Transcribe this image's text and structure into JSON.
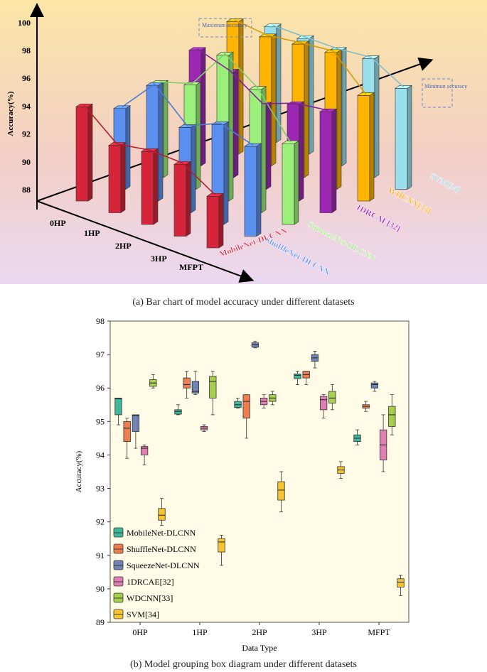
{
  "chart_data": [
    {
      "type": "bar",
      "title": "",
      "caption": "(a) Bar chart of model accuracy under different datasets",
      "ylabel": "Accuracy(%)",
      "ylim": [
        87,
        101
      ],
      "yticks": [
        88,
        90,
        92,
        94,
        96,
        98,
        100
      ],
      "categories": [
        "0HP",
        "1HP",
        "2HP",
        "3HP",
        "MFPT"
      ],
      "annotations": [
        "Maximum accuracy",
        "Minimun accuracy"
      ],
      "series": [
        {
          "name": "MobileNet-DLCNN",
          "color": "#d6243a",
          "values": [
            95.4,
            93.0,
            93.5,
            93.4,
            91.6
          ]
        },
        {
          "name": "ShuffleNet-DLCNN",
          "color": "#5b8ff0",
          "values": [
            94.2,
            97.3,
            94.6,
            95.9,
            95.0
          ]
        },
        {
          "name": "SqueezeNet-DLCNN",
          "color": "#9af07a",
          "values": [
            95.4,
            96.3,
            100.0,
            98.0,
            94.2
          ]
        },
        {
          "name": "1DRCAE[32]",
          "color": "#9b27b2",
          "values": [
            97.3,
            96.4,
            94.5,
            95.6,
            96.0
          ]
        },
        {
          "name": "WDCNN[33]",
          "color": "#ffb400",
          "values": [
            98.8,
            98.5,
            98.9,
            99.2,
            96.4
          ]
        },
        {
          "name": "SVM[34]",
          "color": "#99e0ec",
          "values": [
            97.3,
            97.3,
            97.3,
            97.6,
            96.0
          ]
        }
      ]
    },
    {
      "type": "box",
      "title": "",
      "caption": "(b) Model grouping box diagram under different datasets",
      "xlabel": "Data Type",
      "ylabel": "Accuracy(%)",
      "ylim": [
        89,
        98
      ],
      "yticks": [
        89,
        90,
        91,
        92,
        93,
        94,
        95,
        96,
        97,
        98
      ],
      "categories": [
        "0HP",
        "1HP",
        "2HP",
        "3HP",
        "MFPT"
      ],
      "legend_position": "bottom-left",
      "series": [
        {
          "name": "MobileNet-DLCNN",
          "color": "#3fb79b",
          "boxes": [
            {
              "min": 94.9,
              "q1": 95.2,
              "median": 95.68,
              "q3": 95.7,
              "max": 95.7
            },
            {
              "min": 95.2,
              "q1": 95.22,
              "median": 95.3,
              "q3": 95.35,
              "max": 95.5
            },
            {
              "min": 95.4,
              "q1": 95.42,
              "median": 95.5,
              "q3": 95.6,
              "max": 95.7
            },
            {
              "min": 96.1,
              "q1": 96.28,
              "median": 96.38,
              "q3": 96.42,
              "max": 96.5
            },
            {
              "min": 94.3,
              "q1": 94.4,
              "median": 94.5,
              "q3": 94.6,
              "max": 94.75
            }
          ]
        },
        {
          "name": "ShuffleNet-DLCNN",
          "color": "#ef7d4f",
          "boxes": [
            {
              "min": 93.9,
              "q1": 94.4,
              "median": 94.8,
              "q3": 95.0,
              "max": 95.1
            },
            {
              "min": 95.7,
              "q1": 96.0,
              "median": 96.1,
              "q3": 96.3,
              "max": 96.5
            },
            {
              "min": 94.5,
              "q1": 95.1,
              "median": 95.6,
              "q3": 95.8,
              "max": 95.8
            },
            {
              "min": 96.1,
              "q1": 96.3,
              "median": 96.4,
              "q3": 96.5,
              "max": 96.5
            },
            {
              "min": 95.3,
              "q1": 95.4,
              "median": 95.45,
              "q3": 95.5,
              "max": 95.6
            }
          ]
        },
        {
          "name": "SqueezeNet-DLCNN",
          "color": "#6f84b5",
          "boxes": [
            {
              "min": 94.2,
              "q1": 94.7,
              "median": 95.18,
              "q3": 95.2,
              "max": 95.2
            },
            {
              "min": 95.8,
              "q1": 95.85,
              "median": 95.9,
              "q3": 96.2,
              "max": 96.5
            },
            {
              "min": 97.2,
              "q1": 97.22,
              "median": 97.3,
              "q3": 97.35,
              "max": 97.4
            },
            {
              "min": 96.6,
              "q1": 96.8,
              "median": 96.9,
              "q3": 97.0,
              "max": 97.1
            },
            {
              "min": 95.9,
              "q1": 96.0,
              "median": 96.1,
              "q3": 96.15,
              "max": 96.2
            }
          ]
        },
        {
          "name": "1DRCAE[32]",
          "color": "#df7fb2",
          "boxes": [
            {
              "min": 93.7,
              "q1": 94.0,
              "median": 94.2,
              "q3": 94.25,
              "max": 94.3
            },
            {
              "min": 94.7,
              "q1": 94.75,
              "median": 94.8,
              "q3": 94.85,
              "max": 94.9
            },
            {
              "min": 95.4,
              "q1": 95.5,
              "median": 95.6,
              "q3": 95.7,
              "max": 95.8
            },
            {
              "min": 95.1,
              "q1": 95.35,
              "median": 95.65,
              "q3": 95.75,
              "max": 95.8
            },
            {
              "min": 93.5,
              "q1": 93.85,
              "median": 94.3,
              "q3": 94.75,
              "max": 95.2
            }
          ]
        },
        {
          "name": "WDCNN[33]",
          "color": "#a6cf4d",
          "boxes": [
            {
              "min": 96.0,
              "q1": 96.05,
              "median": 96.15,
              "q3": 96.25,
              "max": 96.4
            },
            {
              "min": 95.2,
              "q1": 95.7,
              "median": 96.2,
              "q3": 96.35,
              "max": 96.5
            },
            {
              "min": 95.5,
              "q1": 95.6,
              "median": 95.7,
              "q3": 95.8,
              "max": 95.9
            },
            {
              "min": 95.35,
              "q1": 95.55,
              "median": 95.7,
              "q3": 95.9,
              "max": 96.1
            },
            {
              "min": 94.6,
              "q1": 94.85,
              "median": 95.2,
              "q3": 95.45,
              "max": 95.8
            }
          ]
        },
        {
          "name": "SVM[34]",
          "color": "#f6c431",
          "boxes": [
            {
              "min": 91.9,
              "q1": 92.05,
              "median": 92.2,
              "q3": 92.4,
              "max": 92.7
            },
            {
              "min": 90.7,
              "q1": 91.1,
              "median": 91.4,
              "q3": 91.5,
              "max": 91.6
            },
            {
              "min": 92.3,
              "q1": 92.65,
              "median": 92.95,
              "q3": 93.2,
              "max": 93.5
            },
            {
              "min": 93.3,
              "q1": 93.45,
              "median": 93.55,
              "q3": 93.65,
              "max": 93.8
            },
            {
              "min": 89.8,
              "q1": 90.05,
              "median": 90.2,
              "q3": 90.3,
              "max": 90.4
            }
          ]
        }
      ]
    }
  ]
}
